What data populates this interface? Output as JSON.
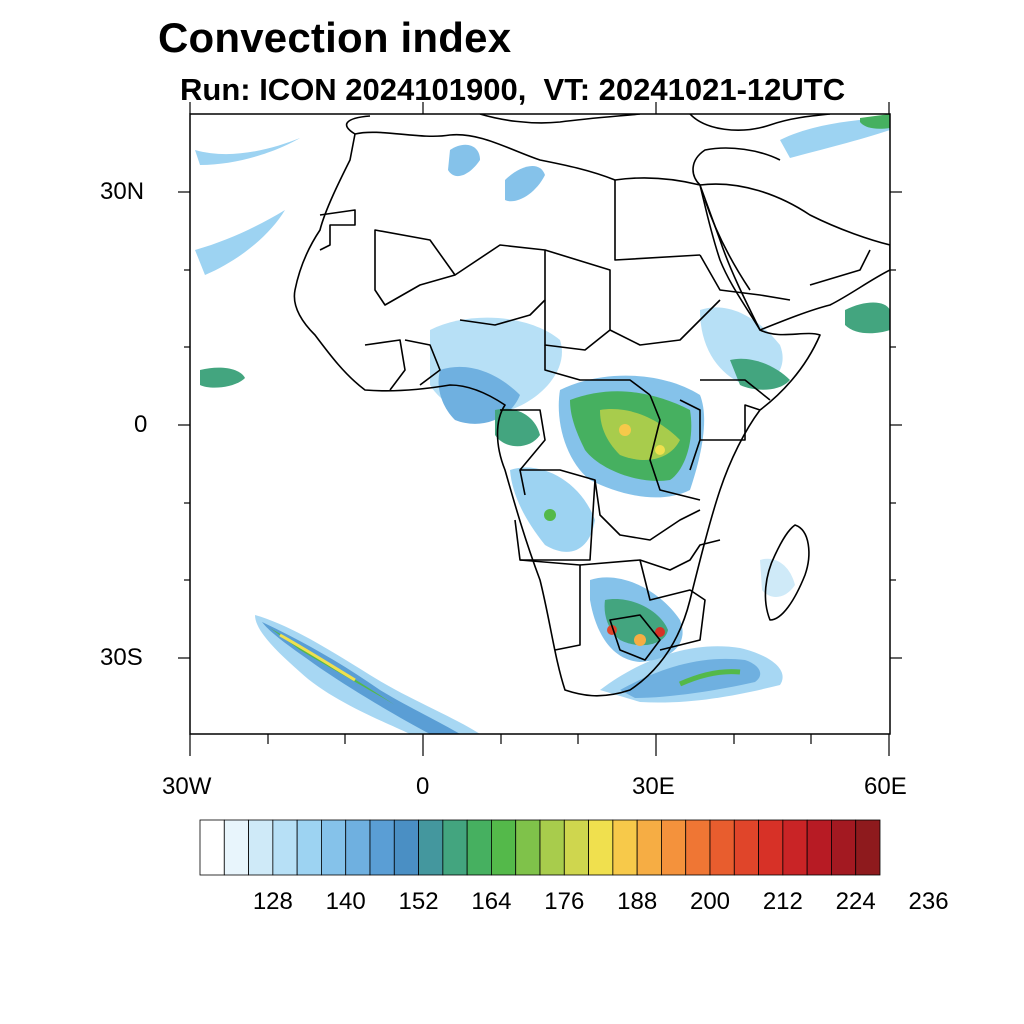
{
  "title": "Convection index",
  "subtitle": "Run: ICON 2024101900,  VT: 20241021-12UTC",
  "axes": {
    "lat_labels": [
      "30N",
      "0",
      "30S"
    ],
    "lon_labels": [
      "30W",
      "0",
      "30E",
      "60E"
    ]
  },
  "colorbar": {
    "labels": [
      "128",
      "140",
      "152",
      "164",
      "176",
      "188",
      "200",
      "212",
      "224",
      "236"
    ],
    "colors": [
      "#ffffff",
      "#e8f5fc",
      "#cfeaf8",
      "#b7e0f6",
      "#9dd3f2",
      "#85c2ea",
      "#6fb0e0",
      "#5a9ed5",
      "#4a8fc4",
      "#44979e",
      "#43a57f",
      "#46b060",
      "#54b94a",
      "#7fc24a",
      "#a8cc4c",
      "#cfd64e",
      "#f0e04e",
      "#f7c94a",
      "#f6ad44",
      "#f4923c",
      "#ef7634",
      "#e85d2e",
      "#e0452a",
      "#d73127",
      "#c92426",
      "#b71b24",
      "#a31921",
      "#8e1a1d"
    ]
  }
}
